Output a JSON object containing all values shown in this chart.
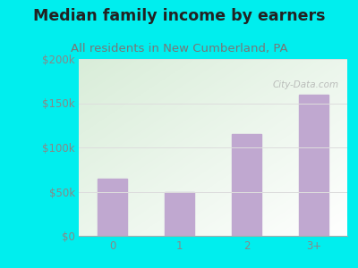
{
  "title": "Median family income by earners",
  "subtitle": "All residents in New Cumberland, PA",
  "categories": [
    "0",
    "1",
    "2",
    "3+"
  ],
  "values": [
    65000,
    50000,
    115000,
    160000
  ],
  "bar_color": "#c0a8d0",
  "title_fontsize": 12.5,
  "subtitle_fontsize": 9.5,
  "title_color": "#222222",
  "subtitle_color": "#777777",
  "tick_color": "#888888",
  "background_color": "#00EEEE",
  "plot_bg_color_topleft": "#d8edd8",
  "plot_bg_color_white": "#ffffff",
  "ylim": [
    0,
    200000
  ],
  "yticks": [
    0,
    50000,
    100000,
    150000,
    200000
  ],
  "ytick_labels": [
    "$0",
    "$50k",
    "$100k",
    "$150k",
    "$200k"
  ],
  "watermark": "City-Data.com",
  "watermark_color": "#aaaaaa",
  "grid_color": "#dddddd"
}
